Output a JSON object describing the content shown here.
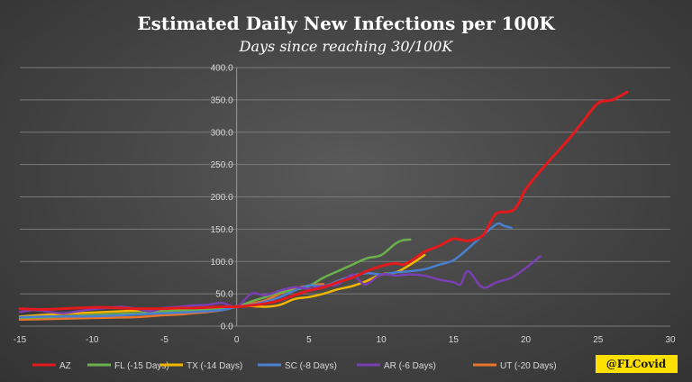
{
  "chart_data": {
    "type": "line",
    "title": "Estimated Daily New Infections per 100K",
    "subtitle": "Days since reaching 30/100K",
    "xlabel": "",
    "ylabel": "",
    "xlim": [
      -15,
      30
    ],
    "ylim": [
      0,
      400
    ],
    "grid": true,
    "legend": "bottom",
    "x_ticks": [
      "-15",
      "-10",
      "-5",
      "0",
      "5",
      "10",
      "15",
      "20",
      "25",
      "30"
    ],
    "y_ticks": [
      "0.0",
      "50.0",
      "100.0",
      "150.0",
      "200.0",
      "250.0",
      "300.0",
      "350.0",
      "400.0"
    ],
    "series": [
      {
        "name": "AZ",
        "color": "#e31a1c",
        "points": [
          [
            -15,
            27
          ],
          [
            -14,
            26
          ],
          [
            -13,
            26
          ],
          [
            -12,
            27
          ],
          [
            -11,
            28
          ],
          [
            -10,
            29
          ],
          [
            -9,
            29
          ],
          [
            -8,
            28
          ],
          [
            -7,
            27
          ],
          [
            -6,
            27
          ],
          [
            -5,
            27
          ],
          [
            -4,
            28
          ],
          [
            -3,
            28
          ],
          [
            -2,
            29
          ],
          [
            -1,
            30
          ],
          [
            0,
            30
          ],
          [
            1,
            32
          ],
          [
            2,
            35
          ],
          [
            3,
            40
          ],
          [
            4,
            48
          ],
          [
            5,
            55
          ],
          [
            6,
            60
          ],
          [
            7,
            68
          ],
          [
            8,
            75
          ],
          [
            9,
            85
          ],
          [
            10,
            93
          ],
          [
            11,
            97
          ],
          [
            11.5,
            95
          ],
          [
            12,
            100
          ],
          [
            13,
            115
          ],
          [
            14,
            124
          ],
          [
            15,
            135
          ],
          [
            16,
            132
          ],
          [
            17,
            140
          ],
          [
            17.5,
            158
          ],
          [
            18,
            175
          ],
          [
            19,
            178
          ],
          [
            19.5,
            190
          ],
          [
            20,
            212
          ],
          [
            21,
            240
          ],
          [
            22,
            265
          ],
          [
            23,
            290
          ],
          [
            24,
            318
          ],
          [
            25,
            345
          ],
          [
            26,
            350
          ],
          [
            27,
            362
          ]
        ]
      },
      {
        "name": "FL (-15 Days)",
        "color": "#6ab04c",
        "points": [
          [
            -15,
            13
          ],
          [
            -13,
            14
          ],
          [
            -11,
            16
          ],
          [
            -9,
            18
          ],
          [
            -7,
            20
          ],
          [
            -5,
            23
          ],
          [
            -3,
            25
          ],
          [
            -1,
            28
          ],
          [
            0,
            30
          ],
          [
            1,
            38
          ],
          [
            2,
            45
          ],
          [
            3,
            52
          ],
          [
            4,
            56
          ],
          [
            5,
            62
          ],
          [
            6,
            75
          ],
          [
            7,
            85
          ],
          [
            8,
            95
          ],
          [
            9,
            105
          ],
          [
            10,
            110
          ],
          [
            11,
            128
          ],
          [
            11.5,
            133
          ],
          [
            12,
            134
          ]
        ]
      },
      {
        "name": "TX (-14 Days)",
        "color": "#f2b600",
        "points": [
          [
            -15,
            15
          ],
          [
            -13,
            18
          ],
          [
            -11,
            20
          ],
          [
            -9,
            22
          ],
          [
            -7,
            24
          ],
          [
            -5,
            26
          ],
          [
            -3,
            26
          ],
          [
            -1,
            27
          ],
          [
            0,
            30
          ],
          [
            1,
            31
          ],
          [
            2,
            30
          ],
          [
            3,
            33
          ],
          [
            4,
            42
          ],
          [
            5,
            45
          ],
          [
            6,
            50
          ],
          [
            7,
            57
          ],
          [
            8,
            62
          ],
          [
            9,
            70
          ],
          [
            10,
            80
          ],
          [
            11,
            83
          ],
          [
            12,
            95
          ],
          [
            13,
            110
          ]
        ]
      },
      {
        "name": "SC (-8 Days)",
        "color": "#4a7fd0",
        "points": [
          [
            -15,
            14
          ],
          [
            -13,
            15
          ],
          [
            -11,
            15
          ],
          [
            -9,
            16
          ],
          [
            -7,
            18
          ],
          [
            -5,
            20
          ],
          [
            -3,
            22
          ],
          [
            -1,
            25
          ],
          [
            0,
            30
          ],
          [
            1,
            33
          ],
          [
            2,
            38
          ],
          [
            3,
            45
          ],
          [
            4,
            55
          ],
          [
            5,
            63
          ],
          [
            6,
            62
          ],
          [
            7,
            70
          ],
          [
            8,
            78
          ],
          [
            9,
            82
          ],
          [
            10,
            80
          ],
          [
            11,
            83
          ],
          [
            12,
            85
          ],
          [
            13,
            88
          ],
          [
            14,
            95
          ],
          [
            15,
            102
          ],
          [
            16,
            120
          ],
          [
            17,
            140
          ],
          [
            18,
            158
          ],
          [
            18.5,
            155
          ],
          [
            19,
            152
          ]
        ]
      },
      {
        "name": "AR (-6 Days)",
        "color": "#7a3fb0",
        "points": [
          [
            -15,
            22
          ],
          [
            -14,
            25
          ],
          [
            -13,
            22
          ],
          [
            -12,
            20
          ],
          [
            -11,
            23
          ],
          [
            -10,
            26
          ],
          [
            -9,
            28
          ],
          [
            -8,
            30
          ],
          [
            -7,
            27
          ],
          [
            -6,
            23
          ],
          [
            -5,
            28
          ],
          [
            -4,
            30
          ],
          [
            -3,
            32
          ],
          [
            -2,
            33
          ],
          [
            -1,
            36
          ],
          [
            0,
            30
          ],
          [
            1,
            50
          ],
          [
            2,
            48
          ],
          [
            3,
            55
          ],
          [
            4,
            60
          ],
          [
            5,
            58
          ],
          [
            6,
            62
          ],
          [
            7,
            65
          ],
          [
            8,
            80
          ],
          [
            8.5,
            70
          ],
          [
            9,
            65
          ],
          [
            10,
            80
          ],
          [
            11,
            78
          ],
          [
            12,
            80
          ],
          [
            13,
            78
          ],
          [
            14,
            72
          ],
          [
            15,
            68
          ],
          [
            15.5,
            65
          ],
          [
            16,
            85
          ],
          [
            17,
            60
          ],
          [
            18,
            68
          ],
          [
            19,
            75
          ],
          [
            20,
            90
          ],
          [
            21,
            108
          ]
        ]
      },
      {
        "name": "UT (-20 Days)",
        "color": "#e8752b",
        "points": [
          [
            -15,
            10
          ],
          [
            -13,
            11
          ],
          [
            -11,
            12
          ],
          [
            -9,
            13
          ],
          [
            -7,
            14
          ],
          [
            -5,
            17
          ],
          [
            -4,
            18
          ],
          [
            -3,
            20
          ],
          [
            -2,
            22
          ],
          [
            -1,
            25
          ],
          [
            0,
            30
          ],
          [
            1,
            35
          ],
          [
            2,
            40
          ],
          [
            3,
            50
          ],
          [
            4,
            58
          ],
          [
            5,
            63
          ],
          [
            6,
            65
          ]
        ]
      }
    ]
  },
  "watermark": "@FLCovid",
  "colors": {
    "gridline": "#7a7a7a",
    "badge_bg": "#ffe000"
  }
}
